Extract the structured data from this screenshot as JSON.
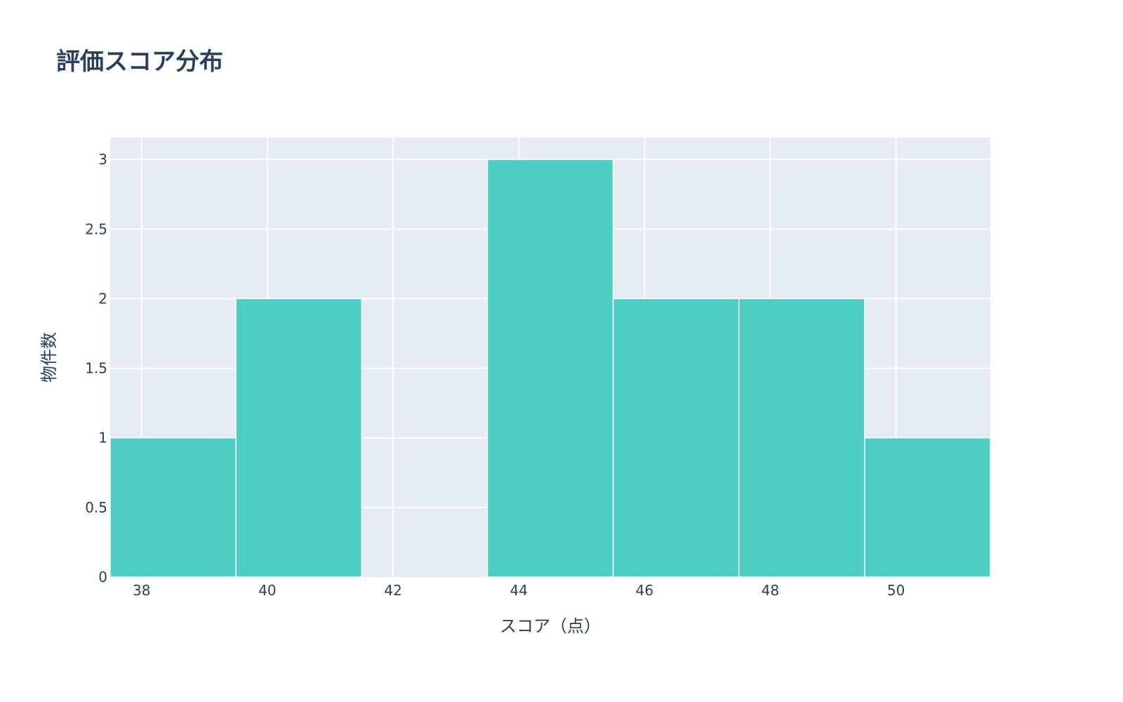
{
  "chart_data": {
    "type": "bar",
    "subtype": "histogram",
    "title": "評価スコア分布",
    "xlabel": "スコア（点）",
    "ylabel": "物件数",
    "bins": [
      {
        "start": 37.5,
        "end": 39.5,
        "count": 1
      },
      {
        "start": 39.5,
        "end": 41.5,
        "count": 2
      },
      {
        "start": 41.5,
        "end": 43.5,
        "count": 0
      },
      {
        "start": 43.5,
        "end": 45.5,
        "count": 3
      },
      {
        "start": 45.5,
        "end": 47.5,
        "count": 2
      },
      {
        "start": 47.5,
        "end": 49.5,
        "count": 2
      },
      {
        "start": 49.5,
        "end": 51.5,
        "count": 1
      }
    ],
    "xlim": [
      37.5,
      51.5
    ],
    "ylim": [
      0,
      3.157
    ],
    "xticks": [
      "38",
      "40",
      "42",
      "44",
      "46",
      "48",
      "50"
    ],
    "yticks": [
      "0",
      "0.5",
      "1",
      "1.5",
      "2",
      "2.5",
      "3"
    ],
    "grid": true,
    "colors": {
      "bar": "#4ECDC4",
      "plot_bg": "#E5ECF6",
      "text": "#2a3f5f"
    }
  }
}
